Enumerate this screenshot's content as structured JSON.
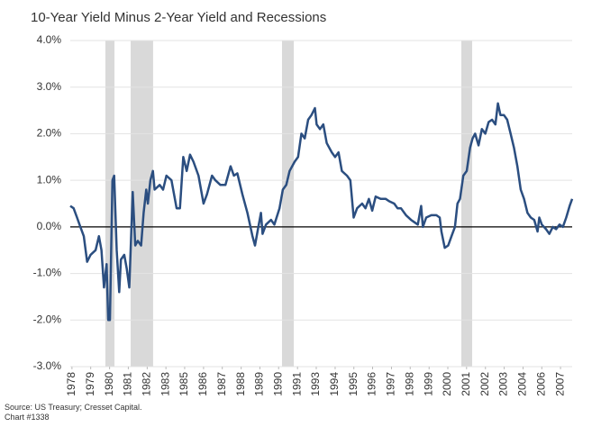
{
  "chart_data": {
    "type": "line",
    "title": "10-Year Yield Minus 2-Year Yield and Recessions",
    "source": "Source: US Treasury; Cresset Capital.",
    "note": "Chart #1338",
    "x": [
      1978.0,
      1978.2,
      1978.4,
      1978.6,
      1978.8,
      1979.0,
      1979.2,
      1979.5,
      1979.7,
      1979.85,
      1980.0,
      1980.15,
      1980.25,
      1980.35,
      1980.5,
      1980.6,
      1980.75,
      1980.9,
      1981.0,
      1981.2,
      1981.35,
      1981.5,
      1981.7,
      1981.85,
      1982.0,
      1982.2,
      1982.35,
      1982.5,
      1982.6,
      1982.75,
      1982.9,
      1983.0,
      1983.3,
      1983.5,
      1983.7,
      1984.0,
      1984.3,
      1984.5,
      1984.7,
      1984.9,
      1985.1,
      1985.3,
      1985.6,
      1985.9,
      1986.1,
      1986.4,
      1986.6,
      1986.9,
      1987.2,
      1987.5,
      1987.7,
      1987.9,
      1988.2,
      1988.5,
      1988.8,
      1988.95,
      1989.1,
      1989.3,
      1989.4,
      1989.6,
      1989.9,
      1990.1,
      1990.4,
      1990.6,
      1990.8,
      1991.0,
      1991.3,
      1991.5,
      1991.7,
      1991.9,
      1992.1,
      1992.3,
      1992.5,
      1992.6,
      1992.8,
      1993.0,
      1993.2,
      1993.5,
      1993.7,
      1993.9,
      1994.1,
      1994.4,
      1994.6,
      1994.8,
      1995.0,
      1995.3,
      1995.5,
      1995.7,
      1995.9,
      1996.1,
      1996.4,
      1996.7,
      1996.9,
      1997.2,
      1997.4,
      1997.6,
      1997.9,
      1998.2,
      1998.4,
      1998.6,
      1998.8,
      1998.9,
      1999.1,
      1999.4,
      1999.7,
      1999.9,
      2000.0,
      2000.2,
      2000.4,
      2000.6,
      2000.8,
      2000.95,
      2001.1,
      2001.3,
      2001.5,
      2001.7,
      2001.85,
      2002.0,
      2002.2,
      2002.4,
      2002.6,
      2002.8,
      2003.0,
      2003.2,
      2003.35,
      2003.5,
      2003.7,
      2003.9,
      2004.1,
      2004.3,
      2004.5,
      2004.7,
      2004.9,
      2005.1,
      2005.3,
      2005.5,
      2005.7,
      2005.8,
      2005.95,
      2006.2,
      2006.4,
      2006.6,
      2006.8,
      2007.0,
      2007.2,
      2007.4,
      2007.6,
      2007.75
    ],
    "series": [
      {
        "color": "#2b4e80",
        "values": [
          0.45,
          0.4,
          0.2,
          0.0,
          -0.2,
          -0.75,
          -0.6,
          -0.5,
          -0.2,
          -0.5,
          -1.3,
          -0.8,
          -2.0,
          -2.0,
          1.0,
          1.1,
          -0.5,
          -1.4,
          -0.7,
          -0.6,
          -0.9,
          -1.3,
          0.75,
          -0.4,
          -0.3,
          -0.4,
          0.3,
          0.8,
          0.5,
          1.0,
          1.2,
          0.8,
          0.9,
          0.8,
          1.1,
          1.0,
          0.4,
          0.4,
          1.5,
          1.2,
          1.55,
          1.4,
          1.1,
          0.5,
          0.7,
          1.1,
          1.0,
          0.9,
          0.9,
          1.3,
          1.1,
          1.15,
          0.7,
          0.3,
          -0.2,
          -0.4,
          -0.1,
          0.3,
          -0.15,
          0.05,
          0.15,
          0.05,
          0.4,
          0.8,
          0.9,
          1.2,
          1.4,
          1.5,
          2.0,
          1.9,
          2.3,
          2.4,
          2.55,
          2.2,
          2.1,
          2.2,
          1.8,
          1.6,
          1.5,
          1.6,
          1.2,
          1.1,
          1.0,
          0.2,
          0.4,
          0.5,
          0.4,
          0.6,
          0.35,
          0.65,
          0.6,
          0.6,
          0.55,
          0.5,
          0.4,
          0.4,
          0.25,
          0.15,
          0.1,
          0.05,
          0.45,
          0.0,
          0.2,
          0.25,
          0.25,
          0.2,
          -0.1,
          -0.45,
          -0.4,
          -0.2,
          0.0,
          0.5,
          0.6,
          1.1,
          1.2,
          1.7,
          1.9,
          2.0,
          1.75,
          2.1,
          2.0,
          2.25,
          2.3,
          2.2,
          2.65,
          2.4,
          2.4,
          2.3,
          2.0,
          1.7,
          1.3,
          0.8,
          0.6,
          0.3,
          0.2,
          0.15,
          -0.1,
          0.2,
          0.05,
          -0.05,
          -0.15,
          0.0,
          -0.05,
          0.05,
          0.0,
          0.2,
          0.45,
          0.6
        ]
      }
    ],
    "recessions": [
      {
        "start": 1980.08,
        "end": 1980.62
      },
      {
        "start": 1981.58,
        "end": 1982.91
      },
      {
        "start": 1990.55,
        "end": 1991.25
      },
      {
        "start": 2001.18,
        "end": 2001.82
      }
    ],
    "recession_color": "#d9d9d9",
    "xlim": [
      1978.0,
      2007.75
    ],
    "xticks": [
      {
        "value": 1978.1,
        "label": "1978"
      },
      {
        "value": 1979.21,
        "label": "1979"
      },
      {
        "value": 1980.33,
        "label": "1980"
      },
      {
        "value": 1981.44,
        "label": "1981"
      },
      {
        "value": 1982.56,
        "label": "1982"
      },
      {
        "value": 1983.67,
        "label": "1983"
      },
      {
        "value": 1984.78,
        "label": "1985"
      },
      {
        "value": 1985.9,
        "label": "1986"
      },
      {
        "value": 1987.01,
        "label": "1987"
      },
      {
        "value": 1988.13,
        "label": "1988"
      },
      {
        "value": 1989.24,
        "label": "1989"
      },
      {
        "value": 1990.35,
        "label": "1990"
      },
      {
        "value": 1991.47,
        "label": "1991"
      },
      {
        "value": 1992.58,
        "label": "1993"
      },
      {
        "value": 1993.7,
        "label": "1994"
      },
      {
        "value": 1994.81,
        "label": "1995"
      },
      {
        "value": 1995.92,
        "label": "1996"
      },
      {
        "value": 1997.04,
        "label": "1997"
      },
      {
        "value": 1998.15,
        "label": "1998"
      },
      {
        "value": 1999.27,
        "label": "1999"
      },
      {
        "value": 2000.38,
        "label": "2000"
      },
      {
        "value": 2001.49,
        "label": "2001"
      },
      {
        "value": 2002.61,
        "label": "2002"
      },
      {
        "value": 2003.72,
        "label": "2003"
      },
      {
        "value": 2004.84,
        "label": "2004"
      },
      {
        "value": 2005.95,
        "label": "2006"
      },
      {
        "value": 2007.06,
        "label": "2007"
      }
    ],
    "ylim": [
      -3,
      4
    ],
    "yticks": [
      {
        "value": -3,
        "label": "-3.0%"
      },
      {
        "value": -2,
        "label": "-2.0%"
      },
      {
        "value": -1,
        "label": "-1.0%"
      },
      {
        "value": 0,
        "label": "0.0%"
      },
      {
        "value": 1,
        "label": "1.0%"
      },
      {
        "value": 2,
        "label": "2.0%"
      },
      {
        "value": 3,
        "label": "3.0%"
      },
      {
        "value": 4,
        "label": "4.0%"
      }
    ],
    "grid": true
  }
}
